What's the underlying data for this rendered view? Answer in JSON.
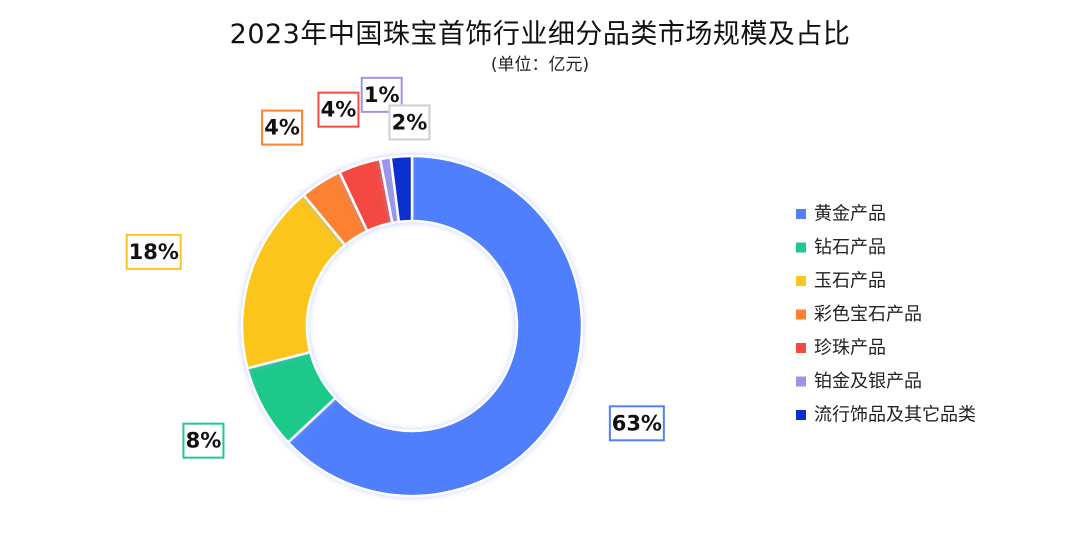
{
  "chart_data": {
    "type": "pie",
    "donut": true,
    "title": "2023年中国珠宝首饰行业细分品类市场规模及占比",
    "subtitle": "(单位：亿元)",
    "legend_position": "right",
    "categories": [
      "黄金产品",
      "钻石产品",
      "玉石产品",
      "彩色宝石产品",
      "珍珠产品",
      "铂金及银产品",
      "流行饰品及其它品类"
    ],
    "values": [
      63,
      8,
      18,
      4,
      4,
      1,
      2
    ],
    "labels": [
      "63%",
      "8%",
      "18%",
      "4%",
      "4%",
      "1%",
      "2%"
    ],
    "unit": "%",
    "colors": [
      "#4f7ffc",
      "#1ec98a",
      "#fcc51d",
      "#fc8132",
      "#f44a43",
      "#9c94ea",
      "#0a2fce"
    ]
  }
}
